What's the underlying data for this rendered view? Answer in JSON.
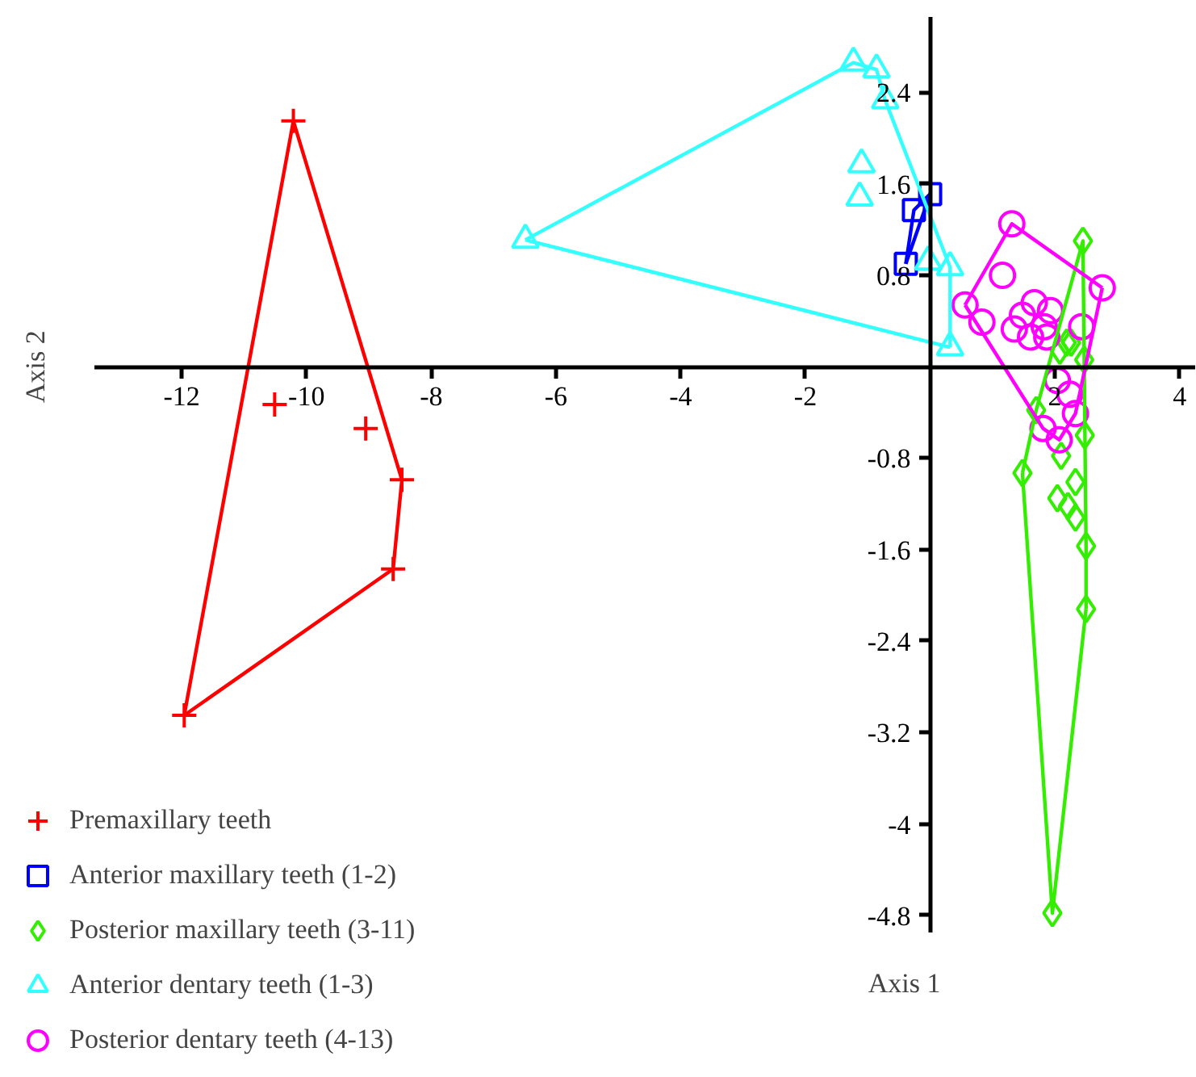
{
  "chart_data": {
    "type": "scatter",
    "xlabel": "Axis 1",
    "ylabel": "Axis 2",
    "xlim": [
      -13.4,
      4.25
    ],
    "ylim": [
      -4.95,
      3.06
    ],
    "xticks": [
      -12,
      -10,
      -8,
      -6,
      -4,
      -2,
      2,
      4
    ],
    "yticks": [
      -4.8,
      -4,
      -3.2,
      -2.4,
      -1.6,
      -0.8,
      0.8,
      1.6,
      2.4
    ],
    "legend": "bottom left",
    "series": [
      {
        "name": "Premaxillary teeth",
        "marker": "cross",
        "color": "#ff0000",
        "x": [
          -10.21,
          -10.51,
          -9.05,
          -8.47,
          -8.61,
          -11.96
        ],
        "values": [
          2.15,
          -0.33,
          -0.54,
          -0.99,
          -1.77,
          -3.05
        ]
      },
      {
        "name": "Anterior maxillary teeth (1-2)",
        "marker": "square",
        "color": "#0000ff",
        "x": [
          0.0,
          -0.26,
          -0.39
        ],
        "values": [
          1.51,
          1.37,
          0.9
        ]
      },
      {
        "name": "Posterior maxillary teeth (3-11)",
        "marker": "diamond",
        "color": "#33ee00",
        "x": [
          2.45,
          1.48,
          1.96,
          2.5,
          2.5,
          2.48,
          2.19,
          2.08,
          2.47,
          1.7,
          2.1,
          2.04,
          2.21,
          2.33,
          2.33,
          2.26
        ],
        "values": [
          1.1,
          -0.93,
          -4.78,
          -2.12,
          -1.57,
          -0.6,
          0.21,
          0.14,
          0.06,
          -0.38,
          -0.78,
          -1.15,
          -1.22,
          -1.01,
          -1.32,
          0.21
        ]
      },
      {
        "name": "Anterior dentary teeth (1-3)",
        "marker": "triangle",
        "color": "#33ffff",
        "x": [
          -1.23,
          -0.86,
          -0.72,
          -1.1,
          -1.13,
          -6.49,
          0.32,
          -0.03,
          0.32
        ],
        "values": [
          2.66,
          2.6,
          2.33,
          1.77,
          1.48,
          1.11,
          0.87,
          0.92,
          0.17
        ]
      },
      {
        "name": "Posterior dentary teeth (4-13)",
        "marker": "circle",
        "color": "#ff00ff",
        "x": [
          1.31,
          2.76,
          0.56,
          0.83,
          1.16,
          1.67,
          1.93,
          1.48,
          1.35,
          1.83,
          1.61,
          1.87,
          2.43,
          2.04,
          2.24,
          2.33,
          1.81,
          2.07
        ],
        "values": [
          1.25,
          0.69,
          0.54,
          0.39,
          0.8,
          0.56,
          0.49,
          0.45,
          0.33,
          0.35,
          0.26,
          0.26,
          0.35,
          -0.12,
          -0.24,
          -0.41,
          -0.54,
          -0.64
        ]
      },
      {
        "type": "line",
        "marker": "none",
        "line_style": "solid",
        "color": "#ff0000",
        "x": [
          -11.96,
          -10.21,
          -8.47
        ],
        "values": [
          -3.05,
          2.15,
          -0.99
        ]
      },
      {
        "type": "line",
        "marker": "none",
        "line_style": "solid",
        "color": "#ff0000",
        "x": [
          -11.96,
          -8.61,
          -8.47
        ],
        "values": [
          -3.05,
          -1.77,
          -0.99
        ]
      },
      {
        "type": "line",
        "marker": "none",
        "line_style": "solid",
        "color": "#0000ff",
        "x": [
          -0.39,
          -0.26,
          0.0
        ],
        "values": [
          0.9,
          1.37,
          1.51
        ]
      },
      {
        "type": "line",
        "marker": "none",
        "line_style": "solid",
        "color": "#0000ff",
        "x": [
          -0.39,
          0.0
        ],
        "values": [
          0.9,
          1.51
        ]
      },
      {
        "type": "line",
        "marker": "none",
        "line_style": "solid",
        "color": "#33ee00",
        "x": [
          1.48,
          1.7,
          2.45,
          2.47,
          2.5,
          2.5
        ],
        "values": [
          -0.93,
          -0.38,
          1.1,
          0.06,
          -1.57,
          -2.12
        ]
      },
      {
        "type": "line",
        "marker": "none",
        "line_style": "solid",
        "color": "#33ee00",
        "x": [
          1.48,
          1.96,
          2.5
        ],
        "values": [
          -0.93,
          -4.78,
          -2.12
        ]
      },
      {
        "type": "line",
        "marker": "none",
        "line_style": "solid",
        "color": "#33ffff",
        "x": [
          -6.49,
          -1.23,
          -0.86,
          -0.72,
          0.32,
          0.32
        ],
        "values": [
          1.11,
          2.66,
          2.6,
          2.33,
          0.87,
          0.17
        ]
      },
      {
        "type": "line",
        "marker": "none",
        "line_style": "solid",
        "color": "#33ffff",
        "x": [
          -6.49,
          0.32
        ],
        "values": [
          1.11,
          0.17
        ]
      },
      {
        "type": "line",
        "marker": "none",
        "line_style": "solid",
        "color": "#ff00ff",
        "x": [
          0.56,
          1.31,
          2.76
        ],
        "values": [
          0.54,
          1.25,
          0.69
        ]
      },
      {
        "type": "line",
        "marker": "none",
        "line_style": "solid",
        "color": "#ff00ff",
        "x": [
          0.56,
          1.81,
          2.07,
          2.33,
          2.76
        ],
        "values": [
          0.54,
          -0.54,
          -0.64,
          -0.41,
          0.69
        ]
      }
    ]
  }
}
